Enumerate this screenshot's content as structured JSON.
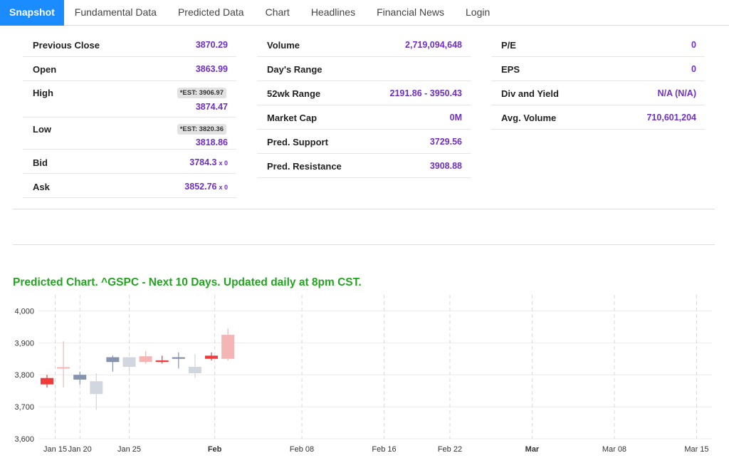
{
  "nav": {
    "tabs": [
      {
        "label": "Snapshot",
        "active": true
      },
      {
        "label": "Fundamental Data"
      },
      {
        "label": "Predicted Data"
      },
      {
        "label": "Chart"
      },
      {
        "label": "Headlines"
      },
      {
        "label": "Financial News"
      },
      {
        "label": "Login"
      }
    ]
  },
  "snapshot": {
    "col1": {
      "previous_close": {
        "label": "Previous Close",
        "value": "3870.29"
      },
      "open": {
        "label": "Open",
        "value": "3863.99"
      },
      "high": {
        "label": "High",
        "est": "*EST: 3906.97",
        "value": "3874.47"
      },
      "low": {
        "label": "Low",
        "est": "*EST: 3820.36",
        "value": "3818.86"
      },
      "bid": {
        "label": "Bid",
        "value": "3784.3",
        "size": "x 0"
      },
      "ask": {
        "label": "Ask",
        "value": "3852.76",
        "size": "x 0"
      }
    },
    "col2": {
      "volume": {
        "label": "Volume",
        "value": "2,719,094,648"
      },
      "days_range": {
        "label": "Day's Range",
        "value": ""
      },
      "range_52wk": {
        "label": "52wk Range",
        "value": "2191.86 - 3950.43"
      },
      "market_cap": {
        "label": "Market Cap",
        "value": "0M"
      },
      "pred_support": {
        "label": "Pred. Support",
        "value": "3729.56"
      },
      "pred_resistance": {
        "label": "Pred. Resistance",
        "value": "3908.88"
      }
    },
    "col3": {
      "pe": {
        "label": "P/E",
        "value": "0"
      },
      "eps": {
        "label": "EPS",
        "value": "0"
      },
      "div_yield": {
        "label": "Div and Yield",
        "value": "N/A (N/A)"
      },
      "avg_volume": {
        "label": "Avg. Volume",
        "value": "710,601,204"
      }
    }
  },
  "chart_title": "Predicted Chart. ^GSPC - Next 10 Days. Updated daily at 8pm CST.",
  "chart_data": {
    "type": "candlestick",
    "ylim": [
      3600,
      4050
    ],
    "yticks": [
      3600,
      3700,
      3800,
      3900,
      4000
    ],
    "ytick_labels": [
      "3,600",
      "3,700",
      "3,800",
      "3,900",
      "4,000"
    ],
    "xticks": [
      {
        "label": "Jan 15",
        "idx": 0.5,
        "bold": false
      },
      {
        "label": "Jan 20",
        "idx": 2,
        "bold": false
      },
      {
        "label": "Jan 25",
        "idx": 5,
        "bold": false
      },
      {
        "label": "Feb",
        "idx": 10.2,
        "bold": true
      },
      {
        "label": "Feb 08",
        "idx": 15.5,
        "bold": false
      },
      {
        "label": "Feb 16",
        "idx": 20.5,
        "bold": false
      },
      {
        "label": "Feb 22",
        "idx": 24.5,
        "bold": false
      },
      {
        "label": "Mar",
        "idx": 29.5,
        "bold": true
      },
      {
        "label": "Mar 08",
        "idx": 34.5,
        "bold": false
      },
      {
        "label": "Mar 15",
        "idx": 39.5,
        "bold": false
      }
    ],
    "vlines": [
      0.5,
      2,
      5,
      10.2,
      15.5,
      20.5,
      24.5,
      29.5,
      34.5,
      39.5
    ],
    "colors": {
      "down": "#ee3b3b",
      "up": "#8593ad",
      "down_faded": "#f4b5b5",
      "up_faded": "#d2d6de",
      "predicted_up": "#3f51c8"
    },
    "candles": [
      {
        "o": 3790,
        "h": 3800,
        "l": 3760,
        "c": 3770,
        "k": "down"
      },
      {
        "o": 3824,
        "h": 3905,
        "l": 3760,
        "c": 3820,
        "k": "down_faded"
      },
      {
        "o": 3785,
        "h": 3810,
        "l": 3770,
        "c": 3800,
        "k": "up"
      },
      {
        "o": 3740,
        "h": 3805,
        "l": 3690,
        "c": 3780,
        "k": "up_faded"
      },
      {
        "o": 3840,
        "h": 3860,
        "l": 3810,
        "c": 3855,
        "k": "up"
      },
      {
        "o": 3825,
        "h": 3855,
        "l": 3810,
        "c": 3855,
        "k": "up_faded"
      },
      {
        "o": 3858,
        "h": 3875,
        "l": 3835,
        "c": 3840,
        "k": "down_faded"
      },
      {
        "o": 3845,
        "h": 3860,
        "l": 3835,
        "c": 3840,
        "k": "down"
      },
      {
        "o": 3850,
        "h": 3870,
        "l": 3820,
        "c": 3855,
        "k": "up"
      },
      {
        "o": 3805,
        "h": 3865,
        "l": 3790,
        "c": 3825,
        "k": "up_faded"
      },
      {
        "o": 3860,
        "h": 3870,
        "l": 3845,
        "c": 3850,
        "k": "down"
      },
      {
        "o": 3925,
        "h": 3945,
        "l": 3845,
        "c": 3850,
        "k": "down_faded"
      }
    ]
  }
}
